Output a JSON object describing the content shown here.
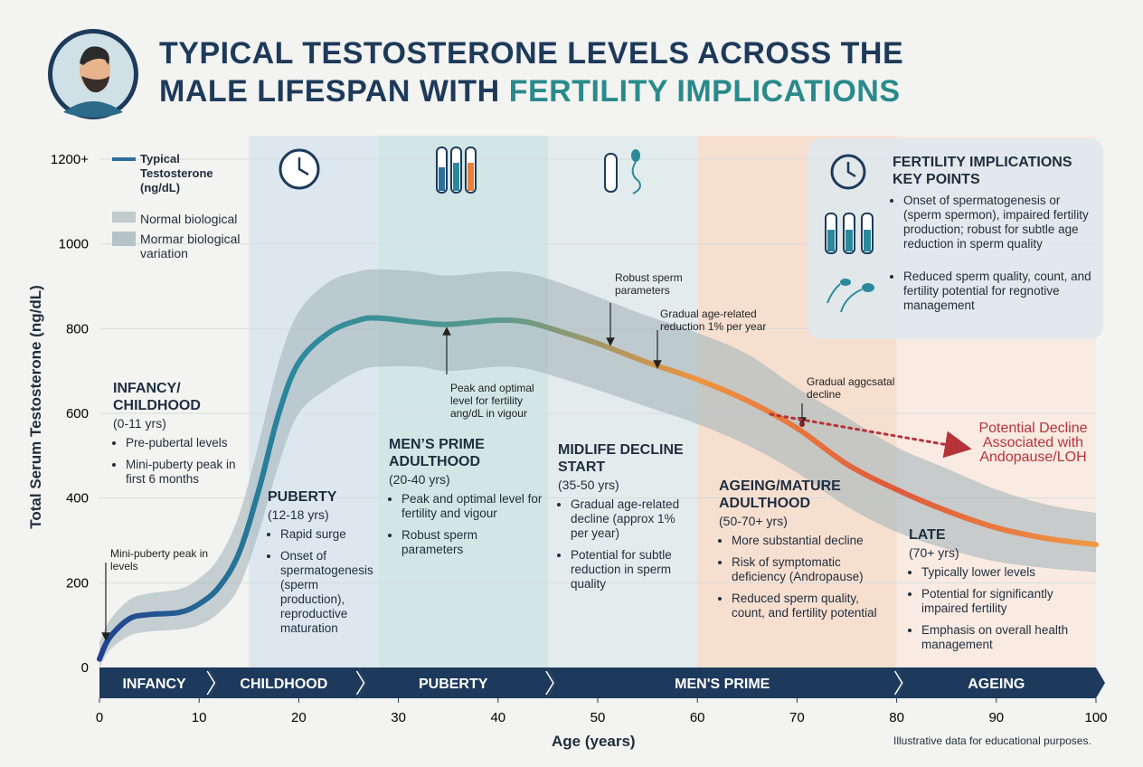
{
  "chart_data": {
    "type": "line",
    "title": {
      "line1": "TYPICAL TESTOSTERONE LEVELS ACROSS THE",
      "line2": "MALE LIFESPAN WITH",
      "highlight": "FERTILITY IMPLICATIONS"
    },
    "x_label": "Age (years)",
    "y_label": "Total Serum Testosterone (ng/dL)",
    "xlim": [
      0,
      100
    ],
    "xticks": [
      0,
      10,
      20,
      30,
      40,
      50,
      60,
      70,
      80,
      90,
      100
    ],
    "ylim": [
      0,
      1200
    ],
    "yticks": [
      0,
      200,
      400,
      600,
      800,
      1000,
      {
        "value": 1200,
        "label": "1200+"
      }
    ],
    "grid": true,
    "x": [
      0,
      1,
      3,
      5,
      8,
      10,
      12,
      14,
      16,
      18,
      20,
      23,
      26,
      28,
      32,
      35,
      40,
      43,
      46,
      50,
      55,
      60,
      65,
      70,
      75,
      80,
      85,
      90,
      95,
      100
    ],
    "series": [
      {
        "name": "Typical Testosterone (ng/dL)",
        "color": "#2a6f9e",
        "gradient": [
          "#22418e",
          "#2a8a9c",
          "#5a9a8e",
          "#ee9440",
          "#e0583a",
          "#ef9a45"
        ],
        "values": [
          20,
          70,
          115,
          125,
          130,
          150,
          190,
          270,
          420,
          600,
          720,
          790,
          820,
          825,
          815,
          810,
          820,
          815,
          795,
          765,
          720,
          680,
          630,
          565,
          480,
          420,
          370,
          330,
          305,
          290
        ]
      }
    ],
    "band": {
      "name": "Normal biological",
      "color": "#9fb0b8",
      "upper": [
        60,
        110,
        160,
        175,
        185,
        210,
        260,
        360,
        530,
        720,
        840,
        910,
        935,
        940,
        935,
        925,
        935,
        930,
        910,
        875,
        830,
        790,
        740,
        660,
        590,
        520,
        470,
        420,
        385,
        365
      ],
      "lower": [
        0,
        40,
        75,
        85,
        90,
        100,
        130,
        190,
        320,
        480,
        600,
        660,
        700,
        710,
        710,
        700,
        710,
        705,
        685,
        655,
        615,
        575,
        525,
        460,
        380,
        320,
        280,
        250,
        235,
        225
      ]
    },
    "legend_extra": {
      "name": "Mormar biological variation",
      "color": "#b6c3c8"
    },
    "zones": [
      {
        "from": 15,
        "to": 28,
        "color": "#d6e3ee"
      },
      {
        "from": 28,
        "to": 45,
        "color": "#c6e1e0"
      },
      {
        "from": 45,
        "to": 60,
        "color": "#dde9ea"
      },
      {
        "from": 60,
        "to": 80,
        "color": "#f8d8c4"
      },
      {
        "from": 80,
        "to": 100,
        "color": "#fbe8dc"
      }
    ],
    "stages": [
      {
        "label": "INFANCY",
        "from": 0,
        "to": 11
      },
      {
        "label": "CHILDHOOD",
        "from": 11,
        "to": 26
      },
      {
        "label": "PUBERTY",
        "from": 26,
        "to": 45
      },
      {
        "label": "MEN'S PRIME",
        "from": 45,
        "to": 80
      },
      {
        "label": "AGEING",
        "from": 80,
        "to": 100
      }
    ],
    "annotations": [
      {
        "title": "INFANCY/ CHILDHOOD",
        "range": "(0-11 yrs)",
        "bullets": [
          "Pre-pubertal levels",
          "Mini-puberty peak in first 6 months"
        ]
      },
      {
        "title": "PUBERTY",
        "range": "(12-18 yrs)",
        "bullets": [
          "Rapid surge",
          "Onset of spermatogenesis (sperm production), reproductive maturation"
        ]
      },
      {
        "title": "MEN’S PRIME ADULTHOOD",
        "range": "(20-40 yrs)",
        "bullets": [
          "Peak and optimal level for fertility and vigour",
          "Robust sperm parameters"
        ]
      },
      {
        "title": "MIDLIFE DECLINE START",
        "range": "(35-50 yrs)",
        "bullets": [
          "Gradual age-related decline (approx 1% per year)",
          "Potential for subtle reduction in sperm quality"
        ]
      },
      {
        "title": "AGEING/MATURE ADULTHOOD",
        "range": "(50-70+ yrs)",
        "bullets": [
          "More substantial decline",
          "Risk of symptomatic deficiency (Andropause)",
          "Reduced sperm quality, count, and fertility potential"
        ]
      },
      {
        "title": "LATE",
        "range": "(70+ yrs)",
        "bullets": [
          "Typically lower levels",
          "Potential for significantly impaired fertility",
          "Emphasis on overall health management"
        ]
      }
    ],
    "callouts": [
      "Mini-puberty peak in levels",
      "Peak and optimal level for fertility ang/dL in vigour",
      "Robust sperm parameters",
      "Gradual age-related reduction 1% per year",
      "Gradual aggcsatal decline"
    ],
    "decline_note": "Potential Decline Associated with Andopause/LOH",
    "key_points": {
      "title": "FERTILITY IMPLICATIONS KEY POINTS",
      "bullets": [
        "Onset of spermatogenesis or (sperm spermon), impaired fertility production; robust for subtle age reduction in sperm quality",
        "Reduced sperm quality, count, and fertility potential for regnotive management"
      ]
    },
    "footnote": "Illustrative data for educational purposes."
  }
}
